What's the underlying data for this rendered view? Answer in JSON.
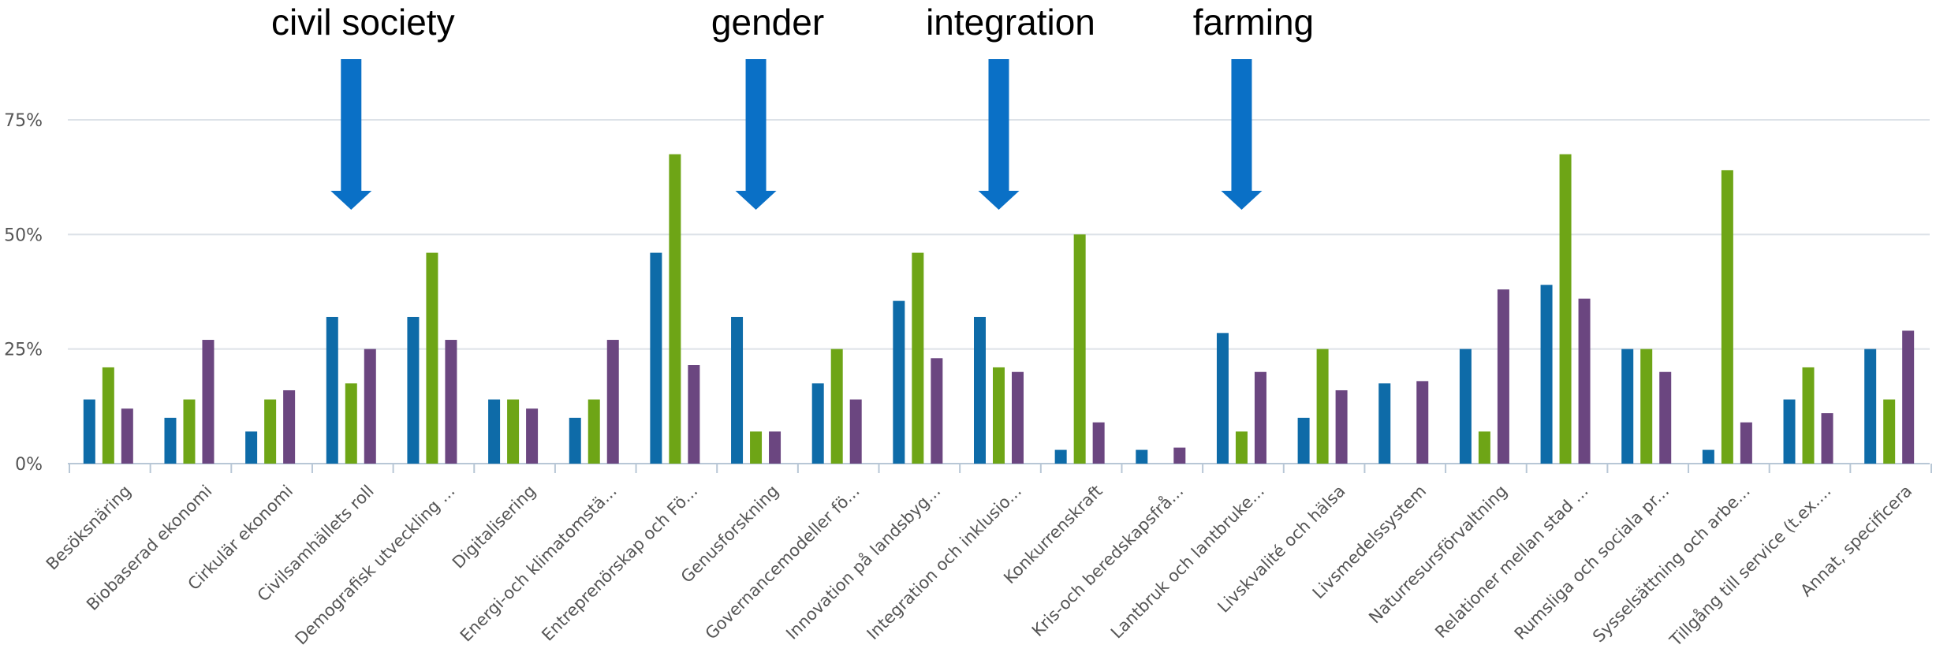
{
  "chart_data": {
    "type": "bar",
    "title": "",
    "xlabel": "",
    "ylabel": "",
    "ylim": [
      0,
      0.75
    ],
    "y_ticks": [
      "0%",
      "25%",
      "50%",
      "75%"
    ],
    "y_tick_values": [
      0,
      0.25,
      0.5,
      0.75
    ],
    "grid": true,
    "legend": "none",
    "categories": [
      "Besöksnäring",
      "Biobaserad ekonomi",
      "Cirkulär ekonomi",
      "Civilsamhällets roll",
      "Demografisk utveckling ...",
      "Digitalisering",
      "Energi-och klimatomstä...",
      "Entreprenörskap och Fö...",
      "Genusforskning",
      "Governancemodeller fö...",
      "Innovation på landsbyg...",
      "Integration och inklusio...",
      "Konkurrenskraft",
      "Kris-och beredskapsfrå...",
      "Lantbruk och lantbruke...",
      "Livskvalité och hälsa",
      "Livsmedelssystem",
      "Naturresursförvaltning",
      "Relationer mellan stad ...",
      "Rumsliga och sociala pr...",
      "Sysselsättning och arbe...",
      "Tillgång till service (t.ex....",
      "Annat, specificera"
    ],
    "series": [
      {
        "color": "#0e6ba8",
        "values": [
          0.14,
          0.1,
          0.07,
          0.32,
          0.32,
          0.14,
          0.1,
          0.46,
          0.32,
          0.175,
          0.355,
          0.32,
          0.03,
          0.03,
          0.285,
          0.1,
          0.175,
          0.25,
          0.39,
          0.25,
          0.03,
          0.14,
          0.25
        ]
      },
      {
        "color": "#6ea516",
        "values": [
          0.21,
          0.14,
          0.14,
          0.175,
          0.46,
          0.14,
          0.14,
          0.675,
          0.07,
          0.25,
          0.46,
          0.21,
          0.5,
          0.0,
          0.07,
          0.25,
          0.0,
          0.07,
          0.675,
          0.25,
          0.64,
          0.21,
          0.14
        ]
      },
      {
        "color": "#6b4680",
        "values": [
          0.12,
          0.27,
          0.16,
          0.25,
          0.27,
          0.12,
          0.27,
          0.215,
          0.07,
          0.14,
          0.23,
          0.2,
          0.09,
          0.035,
          0.2,
          0.16,
          0.18,
          0.38,
          0.36,
          0.2,
          0.09,
          0.11,
          0.29
        ]
      }
    ],
    "annotations": [
      {
        "text": "civil society",
        "category": 3
      },
      {
        "text": "gender",
        "category": 8
      },
      {
        "text": "integration",
        "category": 11
      },
      {
        "text": "farming",
        "category": 14
      }
    ],
    "arrow_color": "#0a70c6"
  }
}
